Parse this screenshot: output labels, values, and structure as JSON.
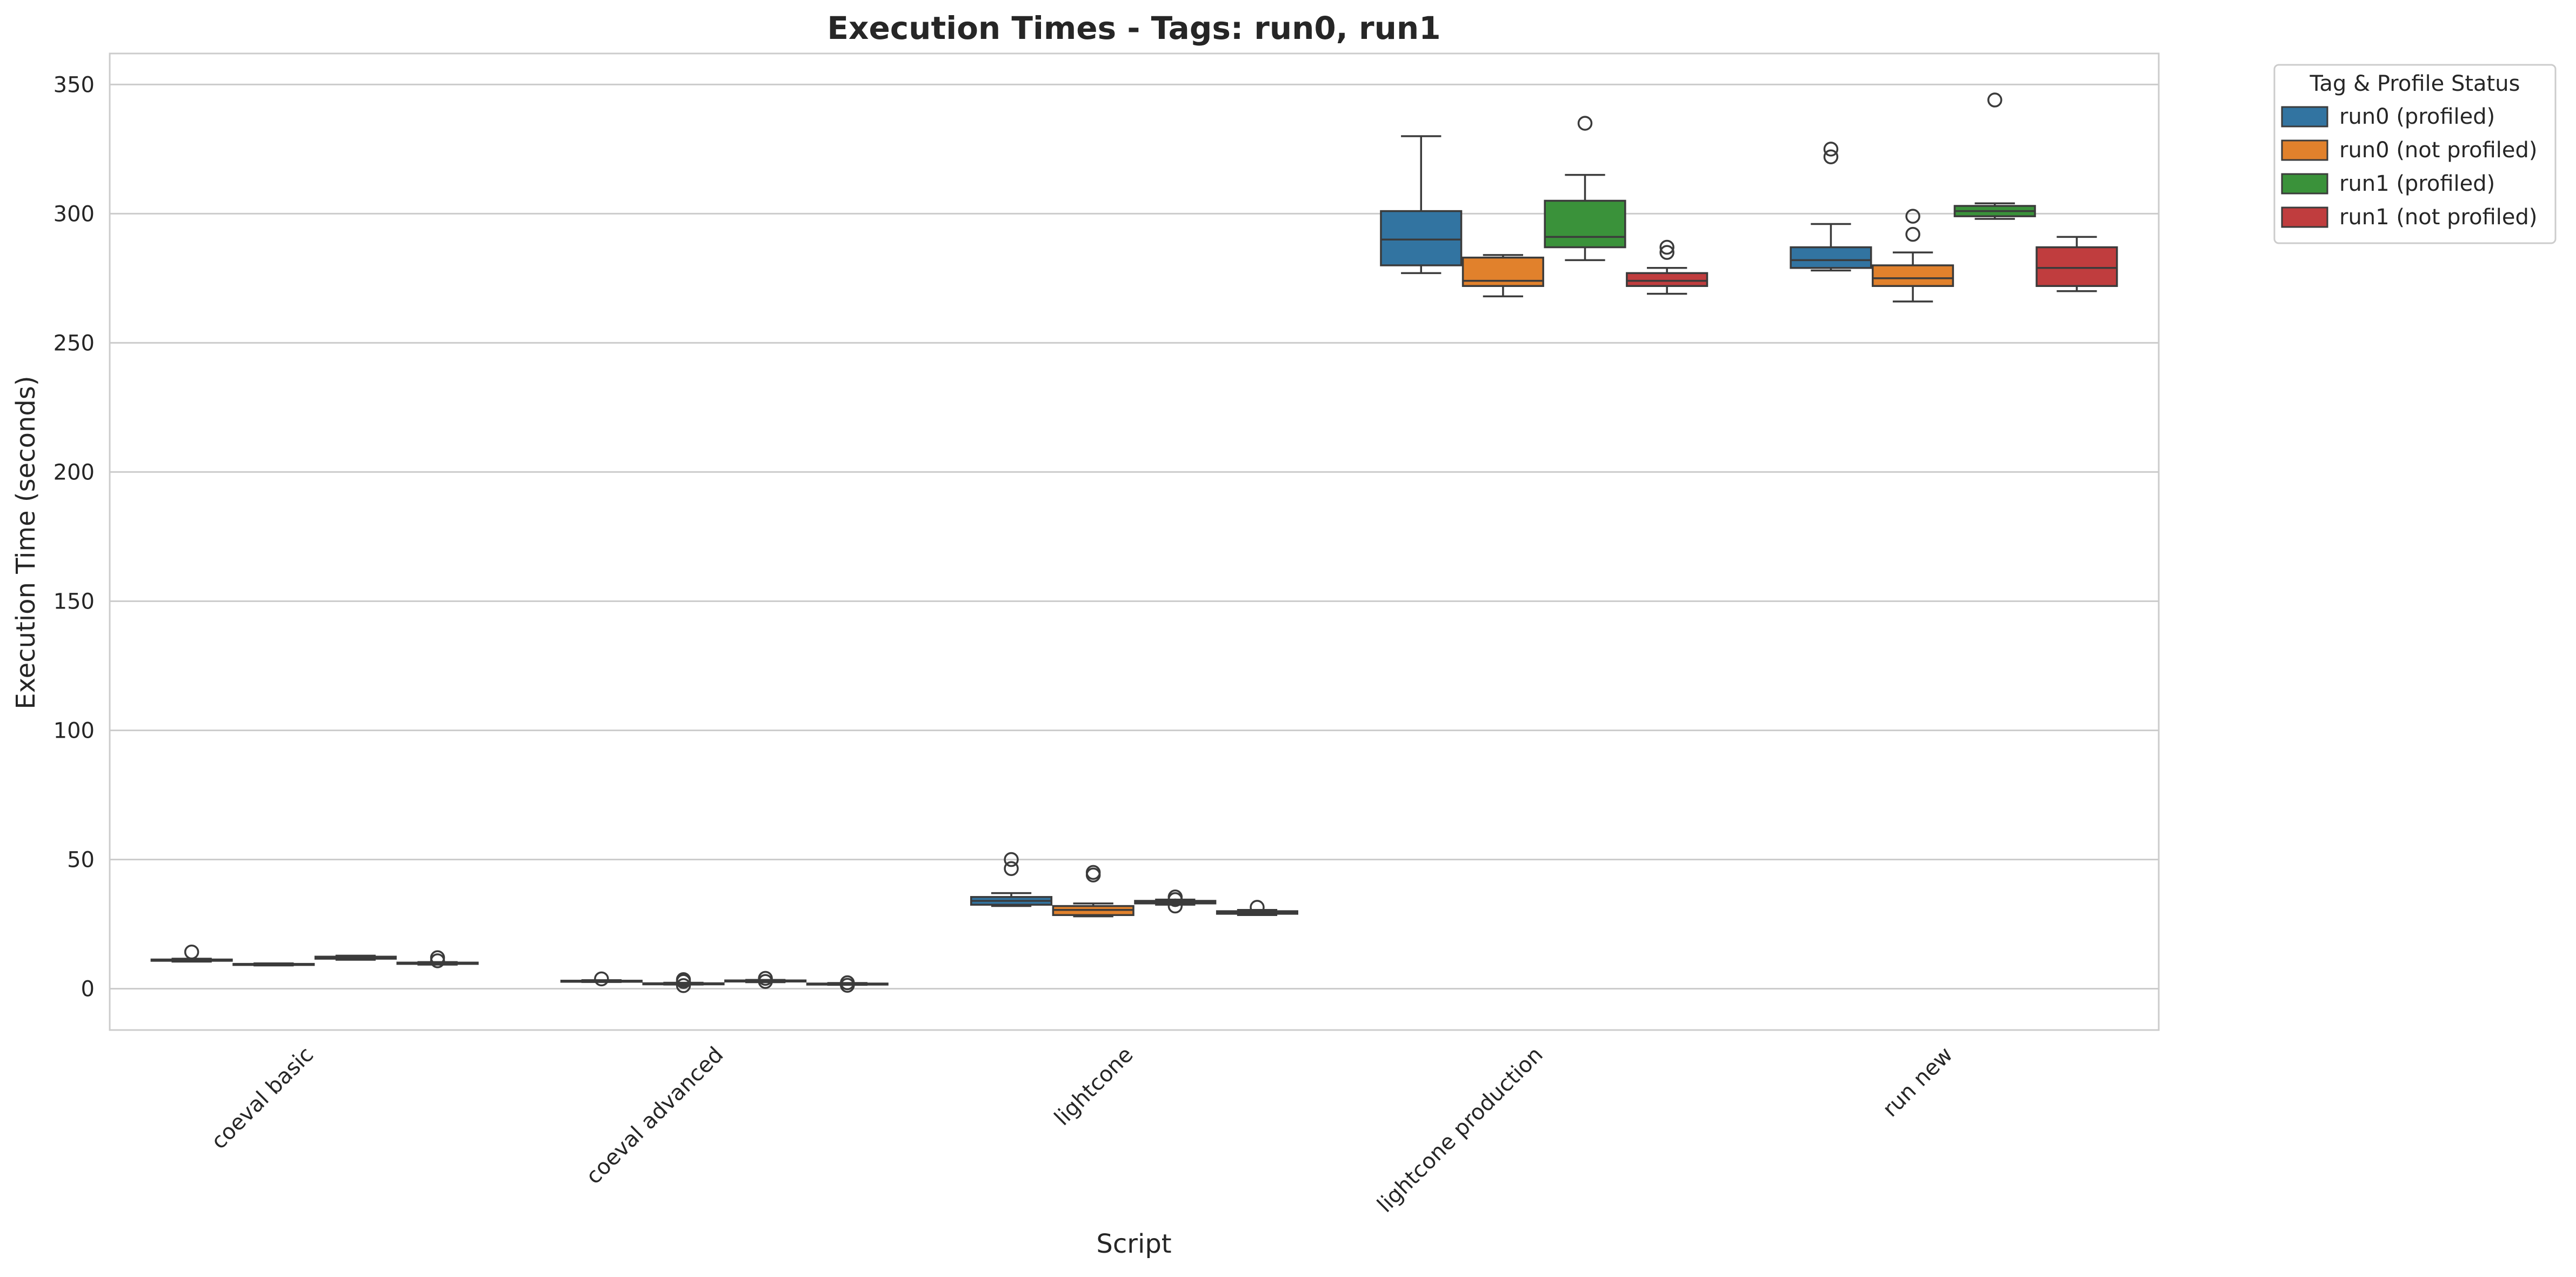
{
  "chart_data": {
    "type": "box",
    "title": "Execution Times - Tags: run0, run1",
    "xlabel": "Script",
    "ylabel": "Execution Time (seconds)",
    "ylim": [
      -16,
      362
    ],
    "yticks": [
      0,
      50,
      100,
      150,
      200,
      250,
      300,
      350
    ],
    "grid": true,
    "categories": [
      "coeval basic",
      "coeval advanced",
      "lightcone",
      "lightcone production",
      "run new"
    ],
    "legend": {
      "title": "Tag & Profile Status",
      "placement": "outside-top-right"
    },
    "series": [
      {
        "name": "run0 (profiled)",
        "color": "#3274a1",
        "boxes": [
          {
            "whislo": 10.5,
            "q1": 10.8,
            "med": 11.0,
            "q3": 11.3,
            "whishi": 11.6,
            "fliers": [
              14.2
            ]
          },
          {
            "whislo": 2.6,
            "q1": 2.8,
            "med": 3.0,
            "q3": 3.1,
            "whishi": 3.3,
            "fliers": [
              3.8
            ]
          },
          {
            "whislo": 32.0,
            "q1": 32.5,
            "med": 34.0,
            "q3": 35.5,
            "whishi": 37.0,
            "fliers": [
              46.5,
              50.0
            ]
          },
          {
            "whislo": 277,
            "q1": 280,
            "med": 290,
            "q3": 301,
            "whishi": 330,
            "fliers": []
          },
          {
            "whislo": 278,
            "q1": 279,
            "med": 282,
            "q3": 287,
            "whishi": 296,
            "fliers": [
              322,
              325
            ]
          }
        ]
      },
      {
        "name": "run0 (not profiled)",
        "color": "#e1812c",
        "boxes": [
          {
            "whislo": 9.0,
            "q1": 9.2,
            "med": 9.4,
            "q3": 9.6,
            "whishi": 9.8,
            "fliers": []
          },
          {
            "whislo": 1.6,
            "q1": 1.8,
            "med": 2.0,
            "q3": 2.1,
            "whishi": 2.3,
            "fliers": [
              1.2,
              2.8,
              3.5
            ]
          },
          {
            "whislo": 28.0,
            "q1": 28.5,
            "med": 30.5,
            "q3": 32.0,
            "whishi": 33.0,
            "fliers": [
              44.0,
              45.0
            ]
          },
          {
            "whislo": 268,
            "q1": 272,
            "med": 274,
            "q3": 283,
            "whishi": 284,
            "fliers": []
          },
          {
            "whislo": 266,
            "q1": 272,
            "med": 275,
            "q3": 280,
            "whishi": 285,
            "fliers": [
              292,
              299
            ]
          }
        ]
      },
      {
        "name": "run1 (profiled)",
        "color": "#3a923a",
        "boxes": [
          {
            "whislo": 11.2,
            "q1": 11.6,
            "med": 12.0,
            "q3": 12.4,
            "whishi": 12.8,
            "fliers": []
          },
          {
            "whislo": 2.5,
            "q1": 2.8,
            "med": 3.0,
            "q3": 3.2,
            "whishi": 3.4,
            "fliers": [
              2.8,
              4.0
            ]
          },
          {
            "whislo": 32.5,
            "q1": 33.0,
            "med": 33.5,
            "q3": 34.0,
            "whishi": 34.5,
            "fliers": [
              32.0,
              34.5,
              35.5
            ]
          },
          {
            "whislo": 282,
            "q1": 287,
            "med": 291,
            "q3": 305,
            "whishi": 315,
            "fliers": [
              335
            ]
          },
          {
            "whislo": 298,
            "q1": 299,
            "med": 301,
            "q3": 303,
            "whishi": 304,
            "fliers": [
              344
            ]
          }
        ]
      },
      {
        "name": "run1 (not profiled)",
        "color": "#c03d3e",
        "boxes": [
          {
            "whislo": 9.3,
            "q1": 9.6,
            "med": 9.9,
            "q3": 10.1,
            "whishi": 10.3,
            "fliers": [
              10.8,
              12.0
            ]
          },
          {
            "whislo": 1.5,
            "q1": 1.7,
            "med": 1.9,
            "q3": 2.0,
            "whishi": 2.2,
            "fliers": [
              1.3,
              2.3
            ]
          },
          {
            "whislo": 28.5,
            "q1": 29.0,
            "med": 29.5,
            "q3": 30.0,
            "whishi": 30.5,
            "fliers": [
              31.5
            ]
          },
          {
            "whislo": 269,
            "q1": 272,
            "med": 274,
            "q3": 277,
            "whishi": 279,
            "fliers": [
              285,
              287
            ]
          },
          {
            "whislo": 270,
            "q1": 272,
            "med": 279,
            "q3": 287,
            "whishi": 291,
            "fliers": []
          }
        ]
      }
    ]
  }
}
